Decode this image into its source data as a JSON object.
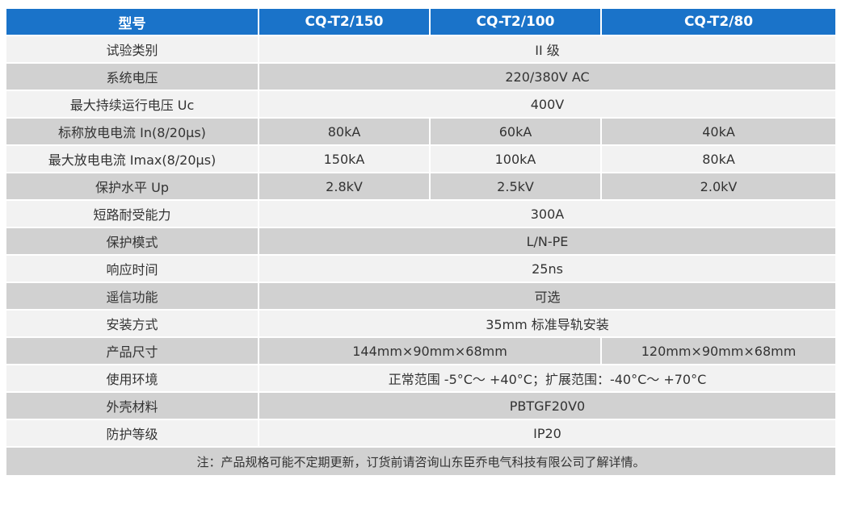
{
  "header": {
    "label": "型号",
    "models": [
      "CQ-T2/150",
      "CQ-T2/100",
      "CQ-T2/80"
    ]
  },
  "rows": [
    {
      "label": "试验类别",
      "value": "II 级"
    },
    {
      "label": "系统电压",
      "value": "220/380V AC"
    },
    {
      "label": "最大持续运行电压 Uc",
      "value": "400V"
    },
    {
      "label": "标称放电电流 In(8/20μs)",
      "values": [
        "80kA",
        "60kA",
        "40kA"
      ]
    },
    {
      "label": "最大放电电流 Imax(8/20μs)",
      "values": [
        "150kA",
        "100kA",
        "80kA"
      ]
    },
    {
      "label": "保护水平 Up",
      "values": [
        "2.8kV",
        "2.5kV",
        "2.0kV"
      ]
    },
    {
      "label": "短路耐受能力",
      "value": "300A"
    },
    {
      "label": "保护模式",
      "value": "L/N-PE"
    },
    {
      "label": "响应时间",
      "value": "25ns"
    },
    {
      "label": "遥信功能",
      "value": "可选"
    },
    {
      "label": "安装方式",
      "value": "35mm 标准导轨安装"
    },
    {
      "label": "产品尺寸",
      "value_a": "144mm×90mm×68mm",
      "value_b": "120mm×90mm×68mm"
    },
    {
      "label": "使用环境",
      "value": "正常范围 -5°C～ +40°C；扩展范围：-40°C～ +70°C"
    },
    {
      "label": "外壳材料",
      "value": "PBTGF20V0"
    },
    {
      "label": "防护等级",
      "value": "IP20"
    }
  ],
  "note": "注：产品规格可能不定期更新，订货前请咨询山东臣乔电气科技有限公司了解详情。",
  "colors": {
    "header_bg": "#1a73c9",
    "row_light": "#f2f2f2",
    "row_dark": "#d1d1d1",
    "text": "#333333"
  }
}
